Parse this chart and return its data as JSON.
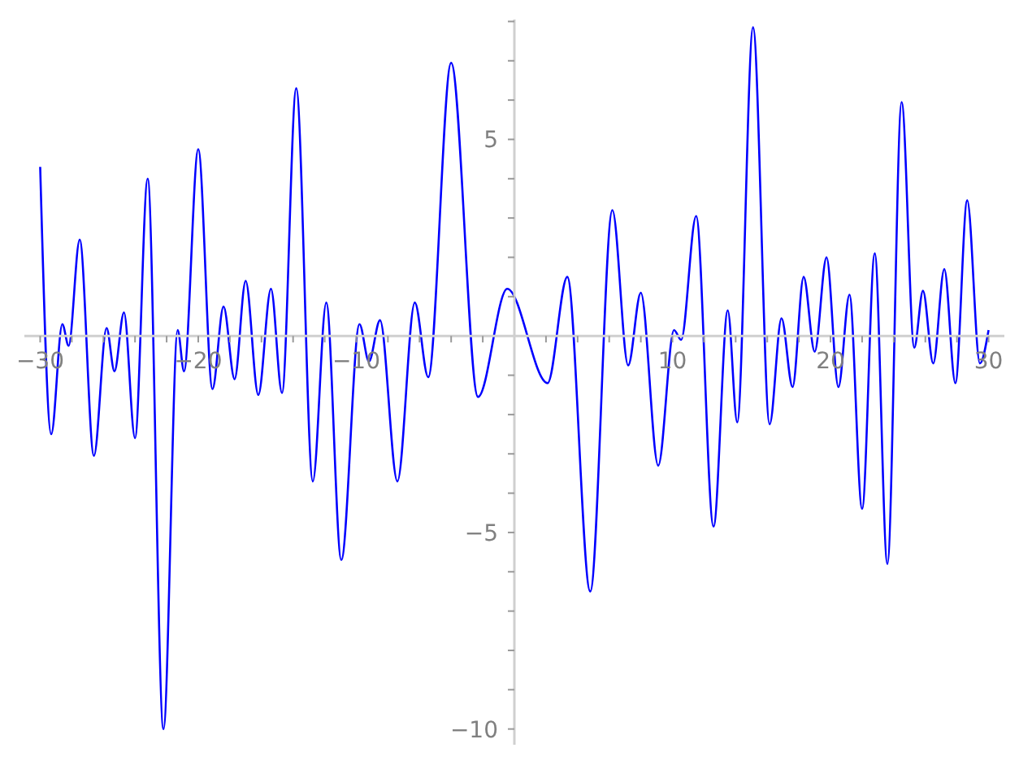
{
  "chart_data": {
    "type": "line",
    "xlim": [
      -31,
      31
    ],
    "ylim": [
      -10.4,
      8.05
    ],
    "xticks": [
      {
        "value": -30,
        "label": "−30"
      },
      {
        "value": -28,
        "label": null
      },
      {
        "value": -26,
        "label": null
      },
      {
        "value": -24,
        "label": null
      },
      {
        "value": -22,
        "label": null
      },
      {
        "value": -20,
        "label": "−20"
      },
      {
        "value": -18,
        "label": null
      },
      {
        "value": -16,
        "label": null
      },
      {
        "value": -14,
        "label": null
      },
      {
        "value": -12,
        "label": null
      },
      {
        "value": -10,
        "label": "−10"
      },
      {
        "value": -8,
        "label": null
      },
      {
        "value": -6,
        "label": null
      },
      {
        "value": -4,
        "label": null
      },
      {
        "value": -2,
        "label": null
      },
      {
        "value": 2,
        "label": null
      },
      {
        "value": 4,
        "label": null
      },
      {
        "value": 6,
        "label": null
      },
      {
        "value": 8,
        "label": null
      },
      10,
      {
        "value": 12,
        "label": null
      },
      {
        "value": 14,
        "label": null
      },
      {
        "value": 16,
        "label": null
      },
      {
        "value": 18,
        "label": null
      },
      20,
      {
        "value": 22,
        "label": null
      },
      {
        "value": 24,
        "label": null
      },
      {
        "value": 26,
        "label": null
      },
      {
        "value": 28,
        "label": null
      },
      30
    ],
    "yticks": [
      {
        "value": -10,
        "label": "−10"
      },
      {
        "value": -9,
        "label": null
      },
      {
        "value": -8,
        "label": null
      },
      {
        "value": -7,
        "label": null
      },
      {
        "value": -6,
        "label": null
      },
      {
        "value": -5,
        "label": "−5"
      },
      {
        "value": -4,
        "label": null
      },
      {
        "value": -3,
        "label": null
      },
      {
        "value": -2,
        "label": null
      },
      {
        "value": -1,
        "label": null
      },
      {
        "value": 1,
        "label": null
      },
      {
        "value": 2,
        "label": null
      },
      {
        "value": 3,
        "label": null
      },
      {
        "value": 4,
        "label": null
      },
      5,
      {
        "value": 6,
        "label": null
      },
      {
        "value": 7,
        "label": null
      },
      {
        "value": 8,
        "label": null
      }
    ],
    "x": [
      -30,
      -29.3,
      -28.6,
      -28.2,
      -27.5,
      -26.6,
      -25.8,
      -25.3,
      -24.7,
      -24.0,
      -23.2,
      -22.2,
      -21.3,
      -20.9,
      -20.0,
      -19.1,
      -18.4,
      -17.7,
      -17.0,
      -16.2,
      -15.4,
      -14.7,
      -13.8,
      -12.75,
      -11.9,
      -10.95,
      -9.8,
      -9.2,
      -8.5,
      -7.4,
      -6.3,
      -5.45,
      -4.0,
      -2.3,
      -0.45,
      2.1,
      3.35,
      4.8,
      6.2,
      7.2,
      8.0,
      9.1,
      10.1,
      10.55,
      11.5,
      12.6,
      13.5,
      14.1,
      15.1,
      16.15,
      16.9,
      17.6,
      18.3,
      19.0,
      19.75,
      20.5,
      21.2,
      22.0,
      22.8,
      23.6,
      24.5,
      25.3,
      25.85,
      26.5,
      27.2,
      27.9,
      28.65,
      29.45,
      30
    ],
    "values": [
      4.3,
      -2.5,
      0.3,
      -0.25,
      2.45,
      -3.05,
      0.2,
      -0.9,
      0.6,
      -2.6,
      4.0,
      -10.0,
      0.15,
      -0.9,
      4.75,
      -1.35,
      0.75,
      -1.1,
      1.4,
      -1.5,
      1.2,
      -1.45,
      6.3,
      -3.7,
      0.85,
      -5.7,
      0.3,
      -0.65,
      0.4,
      -3.7,
      0.85,
      -1.05,
      6.95,
      -1.55,
      1.2,
      -1.2,
      1.5,
      -6.5,
      3.2,
      -0.75,
      1.1,
      -3.3,
      0.15,
      -0.1,
      3.05,
      -4.85,
      0.65,
      -2.2,
      7.85,
      -2.25,
      0.45,
      -1.3,
      1.5,
      -0.4,
      2.0,
      -1.3,
      1.05,
      -4.4,
      2.1,
      -5.8,
      5.95,
      -0.3,
      1.15,
      -0.7,
      1.7,
      -1.2,
      3.45,
      -0.7,
      0.15
    ],
    "color": "#0000ff"
  }
}
